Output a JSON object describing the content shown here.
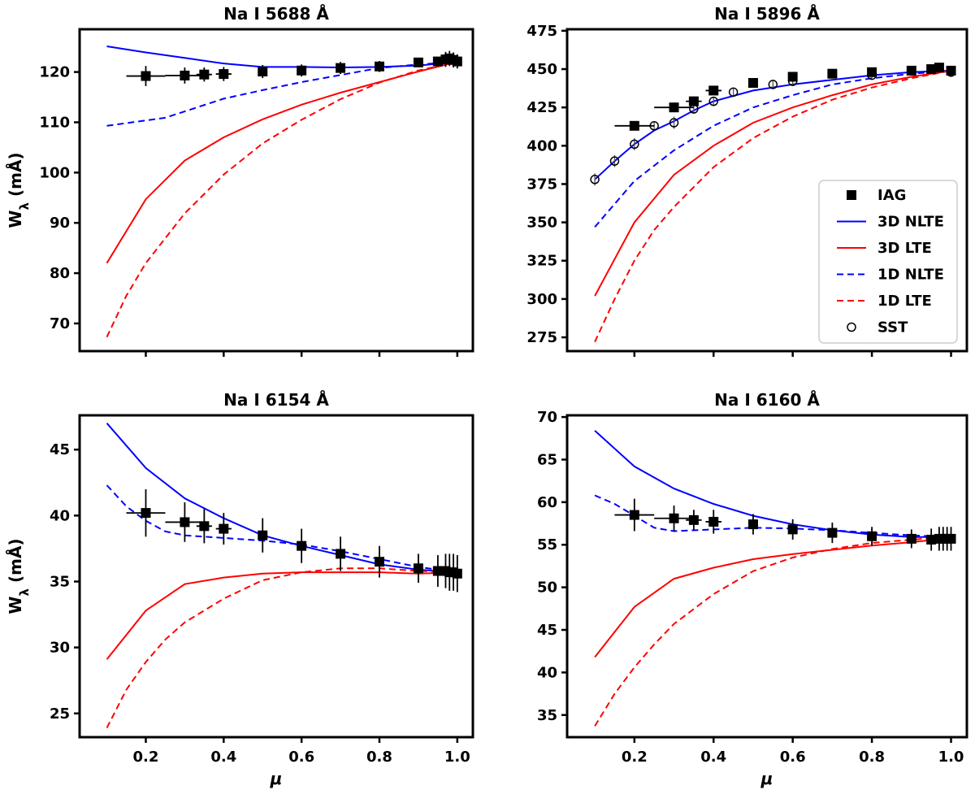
{
  "chart_data": [
    {
      "type": "line",
      "title": "Na I 5688 Å",
      "xlabel": "",
      "ylabel": "W_λ (mÅ)",
      "xlim": [
        0.03,
        1.04
      ],
      "ylim": [
        64.5,
        128.5
      ],
      "xticks": [
        0.2,
        0.4,
        0.6,
        0.8,
        1.0
      ],
      "xtick_labels": [
        "",
        "",
        "",
        "",
        ""
      ],
      "yticks": [
        70,
        80,
        90,
        100,
        110,
        120
      ],
      "ytick_labels": [
        "70",
        "80",
        "90",
        "100",
        "110",
        "120"
      ],
      "series": [
        {
          "key": "3D NLTE",
          "color": "#0000ff",
          "dash": false,
          "x": [
            0.1,
            0.2,
            0.3,
            0.4,
            0.5,
            0.6,
            0.7,
            0.8,
            0.9,
            1.0
          ],
          "y": [
            125.1,
            123.9,
            122.8,
            121.7,
            121.0,
            121.0,
            120.9,
            121.0,
            121.3,
            122.0
          ]
        },
        {
          "key": "3D LTE",
          "color": "#ff0000",
          "dash": false,
          "x": [
            0.1,
            0.2,
            0.3,
            0.4,
            0.5,
            0.6,
            0.7,
            0.8,
            0.9,
            1.0
          ],
          "y": [
            82.0,
            94.7,
            102.4,
            107.0,
            110.6,
            113.5,
            115.9,
            118.0,
            120.1,
            122.0
          ]
        },
        {
          "key": "1D NLTE",
          "color": "#0000ff",
          "dash": true,
          "x": [
            0.1,
            0.25,
            0.4,
            0.5,
            0.6,
            0.7,
            0.8,
            0.9,
            1.0
          ],
          "y": [
            109.3,
            110.9,
            114.7,
            116.4,
            118.0,
            119.4,
            120.8,
            121.5,
            122.0
          ]
        },
        {
          "key": "1D LTE",
          "color": "#ff0000",
          "dash": true,
          "x": [
            0.1,
            0.15,
            0.2,
            0.3,
            0.4,
            0.5,
            0.6,
            0.7,
            0.8,
            0.9,
            1.0
          ],
          "y": [
            67.3,
            75.5,
            82.0,
            91.9,
            99.6,
            105.8,
            110.5,
            114.6,
            117.9,
            120.3,
            122.0
          ]
        }
      ],
      "iag": [
        {
          "x": 0.2,
          "y": 119.2,
          "xerr": 0.05,
          "yerr": 2.0
        },
        {
          "x": 0.3,
          "y": 119.3,
          "xerr": 0.05,
          "yerr": 1.6
        },
        {
          "x": 0.35,
          "y": 119.5,
          "xerr": 0.02,
          "yerr": 1.4
        },
        {
          "x": 0.4,
          "y": 119.6,
          "xerr": 0.02,
          "yerr": 1.4
        },
        {
          "x": 0.5,
          "y": 120.1,
          "xerr": 0.0,
          "yerr": 1.3
        },
        {
          "x": 0.6,
          "y": 120.3,
          "xerr": 0.0,
          "yerr": 1.2
        },
        {
          "x": 0.7,
          "y": 120.8,
          "xerr": 0.0,
          "yerr": 1.2
        },
        {
          "x": 0.8,
          "y": 121.1,
          "xerr": 0.0,
          "yerr": 1.1
        },
        {
          "x": 0.9,
          "y": 121.9,
          "xerr": 0.0,
          "yerr": 0.9
        },
        {
          "x": 0.95,
          "y": 122.1,
          "xerr": 0.0,
          "yerr": 0.9
        },
        {
          "x": 0.97,
          "y": 122.5,
          "xerr": 0.0,
          "yerr": 1.5
        },
        {
          "x": 0.98,
          "y": 122.7,
          "xerr": 0.0,
          "yerr": 1.5
        },
        {
          "x": 0.99,
          "y": 122.4,
          "xerr": 0.0,
          "yerr": 1.5
        },
        {
          "x": 1.0,
          "y": 122.1,
          "xerr": 0.0,
          "yerr": 1.4
        }
      ],
      "sst": []
    },
    {
      "type": "line",
      "title": "Na I 5896 Å",
      "xlabel": "",
      "ylabel": "",
      "xlim": [
        0.03,
        1.04
      ],
      "ylim": [
        266,
        476
      ],
      "xticks": [
        0.2,
        0.4,
        0.6,
        0.8,
        1.0
      ],
      "xtick_labels": [
        "",
        "",
        "",
        "",
        ""
      ],
      "yticks": [
        275,
        300,
        325,
        350,
        375,
        400,
        425,
        450,
        475
      ],
      "ytick_labels": [
        "275",
        "300",
        "325",
        "350",
        "375",
        "400",
        "425",
        "450",
        "475"
      ],
      "series": [
        {
          "key": "3D NLTE",
          "color": "#0000ff",
          "dash": false,
          "x": [
            0.1,
            0.15,
            0.2,
            0.25,
            0.3,
            0.35,
            0.4,
            0.5,
            0.6,
            0.7,
            0.8,
            0.9,
            1.0
          ],
          "y": [
            378,
            390,
            401,
            410,
            416,
            423,
            429,
            436,
            440,
            443,
            446,
            448,
            449
          ]
        },
        {
          "key": "3D LTE",
          "color": "#ff0000",
          "dash": false,
          "x": [
            0.1,
            0.2,
            0.3,
            0.4,
            0.5,
            0.6,
            0.7,
            0.8,
            0.9,
            1.0
          ],
          "y": [
            302,
            350,
            381,
            400,
            415,
            425,
            433,
            440,
            445,
            449
          ]
        },
        {
          "key": "1D NLTE",
          "color": "#0000ff",
          "dash": true,
          "x": [
            0.1,
            0.2,
            0.3,
            0.4,
            0.5,
            0.6,
            0.7,
            0.8,
            0.9,
            1.0
          ],
          "y": [
            347,
            377,
            397,
            413,
            425,
            433,
            440,
            444,
            447,
            449
          ]
        },
        {
          "key": "1D LTE",
          "color": "#ff0000",
          "dash": true,
          "x": [
            0.1,
            0.15,
            0.2,
            0.25,
            0.3,
            0.4,
            0.5,
            0.6,
            0.7,
            0.8,
            0.9,
            1.0
          ],
          "y": [
            272,
            300,
            325,
            345,
            360,
            386,
            405,
            419,
            430,
            438,
            444,
            449
          ]
        }
      ],
      "iag": [
        {
          "x": 0.2,
          "y": 413,
          "xerr": 0.05,
          "yerr": 0
        },
        {
          "x": 0.3,
          "y": 425,
          "xerr": 0.05,
          "yerr": 0
        },
        {
          "x": 0.35,
          "y": 429,
          "xerr": 0.02,
          "yerr": 0
        },
        {
          "x": 0.4,
          "y": 436,
          "xerr": 0.02,
          "yerr": 0
        },
        {
          "x": 0.5,
          "y": 441,
          "xerr": 0,
          "yerr": 0
        },
        {
          "x": 0.6,
          "y": 445,
          "xerr": 0,
          "yerr": 0
        },
        {
          "x": 0.7,
          "y": 447,
          "xerr": 0,
          "yerr": 0
        },
        {
          "x": 0.8,
          "y": 448,
          "xerr": 0,
          "yerr": 0
        },
        {
          "x": 0.9,
          "y": 449,
          "xerr": 0,
          "yerr": 0
        },
        {
          "x": 0.95,
          "y": 450,
          "xerr": 0,
          "yerr": 0
        },
        {
          "x": 0.97,
          "y": 451,
          "xerr": 0,
          "yerr": 0
        },
        {
          "x": 1.0,
          "y": 449,
          "xerr": 0,
          "yerr": 0
        }
      ],
      "sst": [
        {
          "x": 0.1,
          "y": 378,
          "yerr": 4
        },
        {
          "x": 0.15,
          "y": 390,
          "yerr": 4
        },
        {
          "x": 0.2,
          "y": 401,
          "yerr": 4
        },
        {
          "x": 0.25,
          "y": 413,
          "yerr": 3
        },
        {
          "x": 0.3,
          "y": 415,
          "yerr": 4
        },
        {
          "x": 0.35,
          "y": 424,
          "yerr": 3
        },
        {
          "x": 0.4,
          "y": 429,
          "yerr": 3
        },
        {
          "x": 0.45,
          "y": 435,
          "yerr": 3
        },
        {
          "x": 0.55,
          "y": 440,
          "yerr": 3
        },
        {
          "x": 0.6,
          "y": 442,
          "yerr": 3
        },
        {
          "x": 0.8,
          "y": 446,
          "yerr": 2
        },
        {
          "x": 1.0,
          "y": 448,
          "yerr": 2
        }
      ]
    },
    {
      "type": "line",
      "title": "Na I 6154 Å",
      "xlabel": "μ",
      "ylabel": "W_λ (mÅ)",
      "xlim": [
        0.03,
        1.04
      ],
      "ylim": [
        23.2,
        47.6
      ],
      "xticks": [
        0.2,
        0.4,
        0.6,
        0.8,
        1.0
      ],
      "xtick_labels": [
        "0.2",
        "0.4",
        "0.6",
        "0.8",
        "1.0"
      ],
      "yticks": [
        25,
        30,
        35,
        40,
        45
      ],
      "ytick_labels": [
        "25",
        "30",
        "35",
        "40",
        "45"
      ],
      "series": [
        {
          "key": "3D NLTE",
          "color": "#0000ff",
          "dash": false,
          "x": [
            0.1,
            0.2,
            0.3,
            0.4,
            0.5,
            0.6,
            0.7,
            0.8,
            0.9,
            1.0
          ],
          "y": [
            47.0,
            43.6,
            41.3,
            39.8,
            38.5,
            37.7,
            37.0,
            36.3,
            35.9,
            35.7
          ]
        },
        {
          "key": "3D LTE",
          "color": "#ff0000",
          "dash": false,
          "x": [
            0.1,
            0.2,
            0.3,
            0.4,
            0.5,
            0.6,
            0.7,
            0.8,
            0.9,
            1.0
          ],
          "y": [
            29.1,
            32.8,
            34.8,
            35.3,
            35.6,
            35.7,
            35.7,
            35.7,
            35.6,
            35.7
          ]
        },
        {
          "key": "1D NLTE",
          "color": "#0000ff",
          "dash": true,
          "x": [
            0.1,
            0.15,
            0.2,
            0.25,
            0.3,
            0.4,
            0.5,
            0.6,
            0.7,
            0.8,
            0.9,
            1.0
          ],
          "y": [
            42.3,
            40.7,
            39.6,
            38.8,
            38.5,
            38.3,
            38.1,
            37.8,
            37.3,
            36.7,
            36.1,
            35.7
          ]
        },
        {
          "key": "1D LTE",
          "color": "#ff0000",
          "dash": true,
          "x": [
            0.1,
            0.15,
            0.2,
            0.25,
            0.3,
            0.4,
            0.5,
            0.6,
            0.7,
            0.8,
            0.9,
            1.0
          ],
          "y": [
            23.9,
            26.8,
            28.9,
            30.6,
            31.9,
            33.7,
            35.1,
            35.7,
            36.0,
            36.0,
            35.8,
            35.7
          ]
        }
      ],
      "iag": [
        {
          "x": 0.2,
          "y": 40.2,
          "xerr": 0.05,
          "yerr": 1.8
        },
        {
          "x": 0.3,
          "y": 39.5,
          "xerr": 0.05,
          "yerr": 1.5
        },
        {
          "x": 0.35,
          "y": 39.2,
          "xerr": 0.02,
          "yerr": 1.3
        },
        {
          "x": 0.4,
          "y": 39.0,
          "xerr": 0.02,
          "yerr": 1.2
        },
        {
          "x": 0.5,
          "y": 38.5,
          "xerr": 0,
          "yerr": 1.3
        },
        {
          "x": 0.6,
          "y": 37.7,
          "xerr": 0,
          "yerr": 1.3
        },
        {
          "x": 0.7,
          "y": 37.1,
          "xerr": 0,
          "yerr": 1.3
        },
        {
          "x": 0.8,
          "y": 36.5,
          "xerr": 0,
          "yerr": 1.2
        },
        {
          "x": 0.9,
          "y": 36.0,
          "xerr": 0,
          "yerr": 1.1
        },
        {
          "x": 0.95,
          "y": 35.8,
          "xerr": 0,
          "yerr": 1.2
        },
        {
          "x": 0.97,
          "y": 35.8,
          "xerr": 0,
          "yerr": 1.3
        },
        {
          "x": 0.98,
          "y": 35.7,
          "xerr": 0,
          "yerr": 1.4
        },
        {
          "x": 0.99,
          "y": 35.7,
          "xerr": 0,
          "yerr": 1.4
        },
        {
          "x": 1.0,
          "y": 35.6,
          "xerr": 0,
          "yerr": 1.4
        }
      ],
      "sst": []
    },
    {
      "type": "line",
      "title": "Na I 6160 Å",
      "xlabel": "μ",
      "ylabel": "",
      "xlim": [
        0.03,
        1.04
      ],
      "ylim": [
        32.4,
        70.2
      ],
      "xticks": [
        0.2,
        0.4,
        0.6,
        0.8,
        1.0
      ],
      "xtick_labels": [
        "0.2",
        "0.4",
        "0.6",
        "0.8",
        "1.0"
      ],
      "yticks": [
        35,
        40,
        45,
        50,
        55,
        60,
        65,
        70
      ],
      "ytick_labels": [
        "35",
        "40",
        "45",
        "50",
        "55",
        "60",
        "65",
        "70"
      ],
      "series": [
        {
          "key": "3D NLTE",
          "color": "#0000ff",
          "dash": false,
          "x": [
            0.1,
            0.2,
            0.3,
            0.4,
            0.5,
            0.6,
            0.7,
            0.8,
            0.9,
            1.0
          ],
          "y": [
            68.4,
            64.2,
            61.6,
            59.8,
            58.4,
            57.4,
            56.7,
            56.2,
            55.9,
            55.9
          ]
        },
        {
          "key": "3D LTE",
          "color": "#ff0000",
          "dash": false,
          "x": [
            0.1,
            0.2,
            0.3,
            0.4,
            0.5,
            0.6,
            0.7,
            0.8,
            0.9,
            1.0
          ],
          "y": [
            41.8,
            47.7,
            51.0,
            52.3,
            53.3,
            53.9,
            54.4,
            54.9,
            55.3,
            55.8
          ]
        },
        {
          "key": "1D NLTE",
          "color": "#0000ff",
          "dash": true,
          "x": [
            0.1,
            0.15,
            0.2,
            0.25,
            0.3,
            0.4,
            0.5,
            0.6,
            0.7,
            0.8,
            0.9,
            1.0
          ],
          "y": [
            60.8,
            59.8,
            58.4,
            57.0,
            56.6,
            56.8,
            57.0,
            56.9,
            56.7,
            56.4,
            56.1,
            55.9
          ]
        },
        {
          "key": "1D LTE",
          "color": "#ff0000",
          "dash": true,
          "x": [
            0.1,
            0.15,
            0.2,
            0.25,
            0.3,
            0.4,
            0.5,
            0.6,
            0.7,
            0.8,
            0.9,
            1.0
          ],
          "y": [
            33.7,
            37.5,
            40.6,
            43.3,
            45.7,
            49.2,
            51.9,
            53.5,
            54.5,
            55.2,
            55.6,
            55.9
          ]
        }
      ],
      "iag": [
        {
          "x": 0.2,
          "y": 58.5,
          "xerr": 0.05,
          "yerr": 1.9
        },
        {
          "x": 0.3,
          "y": 58.1,
          "xerr": 0.05,
          "yerr": 1.5
        },
        {
          "x": 0.35,
          "y": 57.9,
          "xerr": 0.02,
          "yerr": 1.2
        },
        {
          "x": 0.4,
          "y": 57.7,
          "xerr": 0.02,
          "yerr": 1.4
        },
        {
          "x": 0.5,
          "y": 57.4,
          "xerr": 0,
          "yerr": 1.2
        },
        {
          "x": 0.6,
          "y": 56.8,
          "xerr": 0,
          "yerr": 1.2
        },
        {
          "x": 0.7,
          "y": 56.4,
          "xerr": 0,
          "yerr": 1.2
        },
        {
          "x": 0.8,
          "y": 56.0,
          "xerr": 0,
          "yerr": 1.1
        },
        {
          "x": 0.9,
          "y": 55.7,
          "xerr": 0,
          "yerr": 1.1
        },
        {
          "x": 0.95,
          "y": 55.6,
          "xerr": 0,
          "yerr": 1.3
        },
        {
          "x": 0.97,
          "y": 55.7,
          "xerr": 0,
          "yerr": 1.4
        },
        {
          "x": 0.98,
          "y": 55.7,
          "xerr": 0,
          "yerr": 1.4
        },
        {
          "x": 0.99,
          "y": 55.7,
          "xerr": 0,
          "yerr": 1.4
        },
        {
          "x": 1.0,
          "y": 55.7,
          "xerr": 0,
          "yerr": 1.4
        }
      ],
      "sst": []
    }
  ],
  "legend": {
    "placement": "lower-right of top-right panel",
    "entries": [
      {
        "label": "IAG",
        "marker": "filled-square",
        "color": "#000000"
      },
      {
        "label": "3D NLTE",
        "marker": "solid-line",
        "color": "#0000ff"
      },
      {
        "label": "3D LTE",
        "marker": "solid-line",
        "color": "#ff0000"
      },
      {
        "label": "1D NLTE",
        "marker": "dashed-line",
        "color": "#0000ff"
      },
      {
        "label": "1D LTE",
        "marker": "dashed-line",
        "color": "#ff0000"
      },
      {
        "label": "SST",
        "marker": "open-circle",
        "color": "#000000"
      }
    ]
  }
}
